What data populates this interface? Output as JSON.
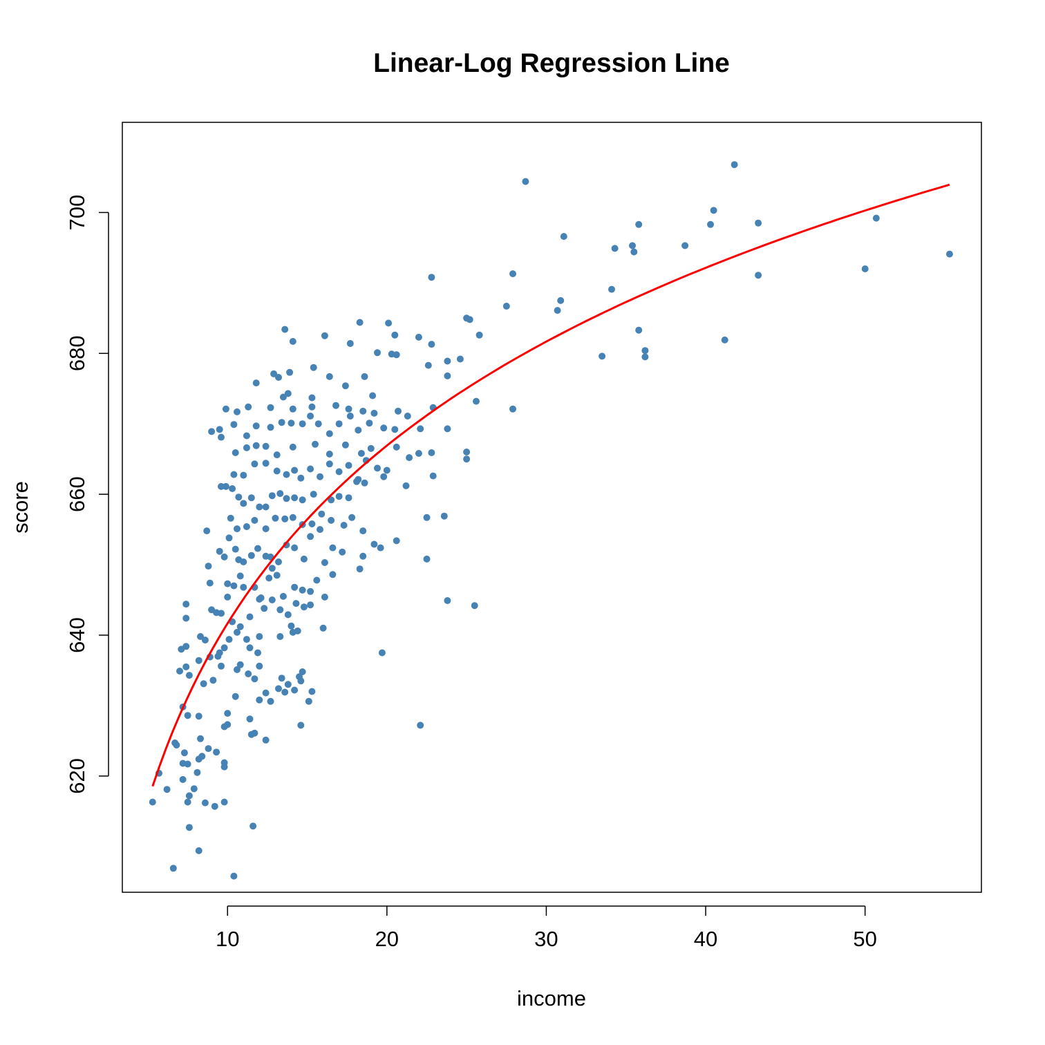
{
  "chart_data": {
    "type": "scatter",
    "title": "Linear-Log Regression Line",
    "xlabel": "income",
    "ylabel": "score",
    "xlim": [
      3.4,
      57.3
    ],
    "ylim": [
      603.5,
      712.8
    ],
    "xticks": [
      10,
      20,
      30,
      40,
      50
    ],
    "yticks": [
      620,
      640,
      660,
      680,
      700
    ],
    "point_color": "#4682B4",
    "line_color": "#FF0000",
    "regression": {
      "form": "score = a + b*ln(income)",
      "a": 557.8,
      "b": 36.42,
      "x_range": [
        5.3,
        55.3
      ]
    },
    "points": [
      [
        5.3,
        616.3
      ],
      [
        5.7,
        620.4
      ],
      [
        6.2,
        618.1
      ],
      [
        6.6,
        606.9
      ],
      [
        6.8,
        624.4
      ],
      [
        7.2,
        619.5
      ],
      [
        7.5,
        616.3
      ],
      [
        7.6,
        612.7
      ],
      [
        7.2,
        621.8
      ],
      [
        7.6,
        617.2
      ],
      [
        7.9,
        618.2
      ],
      [
        8.1,
        620.5
      ],
      [
        8.2,
        622.4
      ],
      [
        7.3,
        623.3
      ],
      [
        8.6,
        616.2
      ],
      [
        9.2,
        615.7
      ],
      [
        9.8,
        616.3
      ],
      [
        8.2,
        609.4
      ],
      [
        10.4,
        605.8
      ],
      [
        11.6,
        612.9
      ],
      [
        7.5,
        621.7
      ],
      [
        8.4,
        622.8
      ],
      [
        8.8,
        623.9
      ],
      [
        9.3,
        623.4
      ],
      [
        9.8,
        621.9
      ],
      [
        9.8,
        621.3
      ],
      [
        6.7,
        624.7
      ],
      [
        8.3,
        625.3
      ],
      [
        7.5,
        628.6
      ],
      [
        8.2,
        628.5
      ],
      [
        9.8,
        627.0
      ],
      [
        10.0,
        627.3
      ],
      [
        10.5,
        631.3
      ],
      [
        11.5,
        625.9
      ],
      [
        11.7,
        626.1
      ],
      [
        12.4,
        625.1
      ],
      [
        14.6,
        627.2
      ],
      [
        22.1,
        627.2
      ],
      [
        11.4,
        628.1
      ],
      [
        10.0,
        628.9
      ],
      [
        7.2,
        629.8
      ],
      [
        8.5,
        633.1
      ],
      [
        9.1,
        633.6
      ],
      [
        9.4,
        637.0
      ],
      [
        9.6,
        635.6
      ],
      [
        10.6,
        635.1
      ],
      [
        10.8,
        635.8
      ],
      [
        11.3,
        634.5
      ],
      [
        11.7,
        633.8
      ],
      [
        12.0,
        630.8
      ],
      [
        12.4,
        631.8
      ],
      [
        12.7,
        630.6
      ],
      [
        13.2,
        632.4
      ],
      [
        13.6,
        631.9
      ],
      [
        13.8,
        633.0
      ],
      [
        14.2,
        632.2
      ],
      [
        14.6,
        633.5
      ],
      [
        15.3,
        632.0
      ],
      [
        15.1,
        630.6
      ],
      [
        13.4,
        633.9
      ],
      [
        7.0,
        634.9
      ],
      [
        7.4,
        635.5
      ],
      [
        7.6,
        634.3
      ],
      [
        8.2,
        636.4
      ],
      [
        8.3,
        639.8
      ],
      [
        8.6,
        639.3
      ],
      [
        8.9,
        636.9
      ],
      [
        9.5,
        637.5
      ],
      [
        9.8,
        638.2
      ],
      [
        10.1,
        639.4
      ],
      [
        10.6,
        640.4
      ],
      [
        11.2,
        639.4
      ],
      [
        11.4,
        638.2
      ],
      [
        11.9,
        637.5
      ],
      [
        12.0,
        635.6
      ],
      [
        12.0,
        639.8
      ],
      [
        13.3,
        639.8
      ],
      [
        14.0,
        641.3
      ],
      [
        14.1,
        640.4
      ],
      [
        14.4,
        640.6
      ],
      [
        14.7,
        634.8
      ],
      [
        14.5,
        634.1
      ],
      [
        7.1,
        638.0
      ],
      [
        7.4,
        638.4
      ],
      [
        9.3,
        643.2
      ],
      [
        9.6,
        643.1
      ],
      [
        10.0,
        645.4
      ],
      [
        10.3,
        641.9
      ],
      [
        10.8,
        641.2
      ],
      [
        11.4,
        642.6
      ],
      [
        12.1,
        645.3
      ],
      [
        12.3,
        643.8
      ],
      [
        12.8,
        645.0
      ],
      [
        13.3,
        643.6
      ],
      [
        13.8,
        642.9
      ],
      [
        14.3,
        644.5
      ],
      [
        14.8,
        644.0
      ],
      [
        15.2,
        644.3
      ],
      [
        16.0,
        641.0
      ],
      [
        7.4,
        642.4
      ],
      [
        7.4,
        644.4
      ],
      [
        9.0,
        643.6
      ],
      [
        8.9,
        647.4
      ],
      [
        8.8,
        649.8
      ],
      [
        10.0,
        647.3
      ],
      [
        10.4,
        647.0
      ],
      [
        10.8,
        648.4
      ],
      [
        11.0,
        646.8
      ],
      [
        11.7,
        646.8
      ],
      [
        12.0,
        645.1
      ],
      [
        12.6,
        648.1
      ],
      [
        12.8,
        649.5
      ],
      [
        13.1,
        648.5
      ],
      [
        13.5,
        645.5
      ],
      [
        14.2,
        646.8
      ],
      [
        14.7,
        646.4
      ],
      [
        15.2,
        646.2
      ],
      [
        15.6,
        647.8
      ],
      [
        16.1,
        645.4
      ],
      [
        16.6,
        648.6
      ],
      [
        8.7,
        654.8
      ],
      [
        9.5,
        651.9
      ],
      [
        9.8,
        651.1
      ],
      [
        10.1,
        653.8
      ],
      [
        10.5,
        652.2
      ],
      [
        10.7,
        650.7
      ],
      [
        11.0,
        650.4
      ],
      [
        11.5,
        651.3
      ],
      [
        11.9,
        652.3
      ],
      [
        12.4,
        651.2
      ],
      [
        12.7,
        651.1
      ],
      [
        13.2,
        650.4
      ],
      [
        13.7,
        652.8
      ],
      [
        14.2,
        652.4
      ],
      [
        14.8,
        650.8
      ],
      [
        15.2,
        654.0
      ],
      [
        16.1,
        650.3
      ],
      [
        16.6,
        652.4
      ],
      [
        17.2,
        651.8
      ],
      [
        18.3,
        649.4
      ],
      [
        18.5,
        651.2
      ],
      [
        19.2,
        652.9
      ],
      [
        19.6,
        652.4
      ],
      [
        20.6,
        653.4
      ],
      [
        22.5,
        650.8
      ],
      [
        23.8,
        644.9
      ],
      [
        25.5,
        644.2
      ],
      [
        19.7,
        637.5
      ],
      [
        9.6,
        661.1
      ],
      [
        9.9,
        661.1
      ],
      [
        10.3,
        660.8
      ],
      [
        10.7,
        659.6
      ],
      [
        11.0,
        658.7
      ],
      [
        11.5,
        659.5
      ],
      [
        12.0,
        658.2
      ],
      [
        12.4,
        658.2
      ],
      [
        12.8,
        659.8
      ],
      [
        13.3,
        660.1
      ],
      [
        13.7,
        659.4
      ],
      [
        14.2,
        659.5
      ],
      [
        14.7,
        659.2
      ],
      [
        15.4,
        660.0
      ],
      [
        15.9,
        657.2
      ],
      [
        16.5,
        659.2
      ],
      [
        17.0,
        659.7
      ],
      [
        17.6,
        659.5
      ],
      [
        18.1,
        661.8
      ],
      [
        18.6,
        661.6
      ],
      [
        19.8,
        662.5
      ],
      [
        21.2,
        661.2
      ],
      [
        22.9,
        662.6
      ],
      [
        10.2,
        656.6
      ],
      [
        10.6,
        655.1
      ],
      [
        11.2,
        655.4
      ],
      [
        11.7,
        656.3
      ],
      [
        12.4,
        655.1
      ],
      [
        13.0,
        656.6
      ],
      [
        13.6,
        656.5
      ],
      [
        14.1,
        656.7
      ],
      [
        14.7,
        655.7
      ],
      [
        15.3,
        655.8
      ],
      [
        15.8,
        655.0
      ],
      [
        16.5,
        656.3
      ],
      [
        17.3,
        655.6
      ],
      [
        17.8,
        656.7
      ],
      [
        18.5,
        654.8
      ],
      [
        23.6,
        656.9
      ],
      [
        22.5,
        656.7
      ],
      [
        10.4,
        662.8
      ],
      [
        11.0,
        662.7
      ],
      [
        11.7,
        664.3
      ],
      [
        12.4,
        664.4
      ],
      [
        13.1,
        663.3
      ],
      [
        13.7,
        662.8
      ],
      [
        14.2,
        663.4
      ],
      [
        14.6,
        662.3
      ],
      [
        15.2,
        663.6
      ],
      [
        15.8,
        662.5
      ],
      [
        16.4,
        664.3
      ],
      [
        17.0,
        663.2
      ],
      [
        17.6,
        664.1
      ],
      [
        18.2,
        662.1
      ],
      [
        18.7,
        664.8
      ],
      [
        19.4,
        663.7
      ],
      [
        20.0,
        663.4
      ],
      [
        10.5,
        665.9
      ],
      [
        11.2,
        666.6
      ],
      [
        11.8,
        666.9
      ],
      [
        12.4,
        666.8
      ],
      [
        13.1,
        665.6
      ],
      [
        14.1,
        666.7
      ],
      [
        15.5,
        667.1
      ],
      [
        16.4,
        665.7
      ],
      [
        17.4,
        667.0
      ],
      [
        18.4,
        665.8
      ],
      [
        19.0,
        666.5
      ],
      [
        20.6,
        666.7
      ],
      [
        21.4,
        665.2
      ],
      [
        22.0,
        665.8
      ],
      [
        22.8,
        665.9
      ],
      [
        25.0,
        666.0
      ],
      [
        25.0,
        665.0
      ],
      [
        9.0,
        668.9
      ],
      [
        9.5,
        669.2
      ],
      [
        9.6,
        668.1
      ],
      [
        10.4,
        669.9
      ],
      [
        11.2,
        668.3
      ],
      [
        11.8,
        669.7
      ],
      [
        12.7,
        669.5
      ],
      [
        13.4,
        670.2
      ],
      [
        14.0,
        670.1
      ],
      [
        14.7,
        670.0
      ],
      [
        15.2,
        671.1
      ],
      [
        15.7,
        670.0
      ],
      [
        16.4,
        668.6
      ],
      [
        17.0,
        670.0
      ],
      [
        17.7,
        671.1
      ],
      [
        18.2,
        669.1
      ],
      [
        18.9,
        670.1
      ],
      [
        19.8,
        669.4
      ],
      [
        20.5,
        669.2
      ],
      [
        22.1,
        669.3
      ],
      [
        23.8,
        669.3
      ],
      [
        9.9,
        672.1
      ],
      [
        10.6,
        671.7
      ],
      [
        11.3,
        672.4
      ],
      [
        12.7,
        672.3
      ],
      [
        14.1,
        672.1
      ],
      [
        15.3,
        672.4
      ],
      [
        16.8,
        672.6
      ],
      [
        17.6,
        672.1
      ],
      [
        18.5,
        671.8
      ],
      [
        19.2,
        671.5
      ],
      [
        20.7,
        671.8
      ],
      [
        21.3,
        671.1
      ],
      [
        22.9,
        672.3
      ],
      [
        27.9,
        672.1
      ],
      [
        25.6,
        673.2
      ],
      [
        11.8,
        675.8
      ],
      [
        13.5,
        673.8
      ],
      [
        13.8,
        674.3
      ],
      [
        15.3,
        673.7
      ],
      [
        16.4,
        676.7
      ],
      [
        17.4,
        675.4
      ],
      [
        18.6,
        676.7
      ],
      [
        19.1,
        674.0
      ],
      [
        12.9,
        677.1
      ],
      [
        13.9,
        677.3
      ],
      [
        15.4,
        678.0
      ],
      [
        13.2,
        676.6
      ],
      [
        14.1,
        681.7
      ],
      [
        16.1,
        682.5
      ],
      [
        13.6,
        683.4
      ],
      [
        17.7,
        681.4
      ],
      [
        18.3,
        684.4
      ],
      [
        19.4,
        680.1
      ],
      [
        20.1,
        684.3
      ],
      [
        20.5,
        682.6
      ],
      [
        20.3,
        679.9
      ],
      [
        20.6,
        679.8
      ],
      [
        22.0,
        682.3
      ],
      [
        22.8,
        681.3
      ],
      [
        22.6,
        678.3
      ],
      [
        23.8,
        678.9
      ],
      [
        23.8,
        676.8
      ],
      [
        24.6,
        679.2
      ],
      [
        25.0,
        685.0
      ],
      [
        25.2,
        684.8
      ],
      [
        25.8,
        682.6
      ],
      [
        27.5,
        686.7
      ],
      [
        27.9,
        691.3
      ],
      [
        22.8,
        690.8
      ],
      [
        28.7,
        704.4
      ],
      [
        30.7,
        686.1
      ],
      [
        30.9,
        687.5
      ],
      [
        31.1,
        696.6
      ],
      [
        33.5,
        679.6
      ],
      [
        34.1,
        689.1
      ],
      [
        34.3,
        694.9
      ],
      [
        35.4,
        695.3
      ],
      [
        35.5,
        694.4
      ],
      [
        35.8,
        698.3
      ],
      [
        35.8,
        683.3
      ],
      [
        36.2,
        680.4
      ],
      [
        36.2,
        679.5
      ],
      [
        38.7,
        695.3
      ],
      [
        40.3,
        698.3
      ],
      [
        40.5,
        700.3
      ],
      [
        41.2,
        681.9
      ],
      [
        41.8,
        706.8
      ],
      [
        43.3,
        698.5
      ],
      [
        43.3,
        691.1
      ],
      [
        50.0,
        692.0
      ],
      [
        50.7,
        699.2
      ],
      [
        55.3,
        694.1
      ]
    ]
  }
}
